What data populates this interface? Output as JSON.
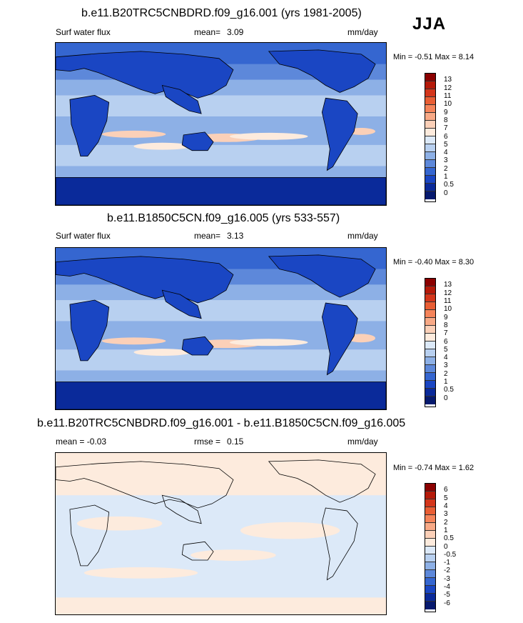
{
  "season": "JJA",
  "panels": [
    {
      "title": "b.e11.B20TRC5CNBDRD.f09_g16.001 (yrs 1981-2005)",
      "left_label": "Surf water flux",
      "mean_label": "mean=",
      "mean_value": "3.09",
      "units": "mm/day",
      "minmax": "Min =  -0.51 Max =   8.14",
      "levels": [
        "13",
        "12",
        "11",
        "10",
        "9",
        "8",
        "7",
        "6",
        "5",
        "4",
        "3",
        "2",
        "1",
        "0.5",
        "0"
      ]
    },
    {
      "title": "b.e11.B1850C5CN.f09_g16.005 (yrs 533-557)",
      "left_label": "Surf water flux",
      "mean_label": "mean=",
      "mean_value": "3.13",
      "units": "mm/day",
      "minmax": "Min =  -0.40 Max =   8.30",
      "levels": [
        "13",
        "12",
        "11",
        "10",
        "9",
        "8",
        "7",
        "6",
        "5",
        "4",
        "3",
        "2",
        "1",
        "0.5",
        "0"
      ]
    },
    {
      "title": "b.e11.B20TRC5CNBDRD.f09_g16.001 - b.e11.B1850C5CN.f09_g16.005",
      "left_label": "mean =  -0.03",
      "mean_label": "rmse =",
      "mean_value": "0.15",
      "units": "mm/day",
      "minmax": "Min =  -0.74 Max =   1.62",
      "levels": [
        "6",
        "5",
        "4",
        "3",
        "2",
        "1",
        "0.5",
        "0",
        "-0.5",
        "-1",
        "-2",
        "-3",
        "-4",
        "-5",
        "-6"
      ]
    }
  ],
  "colors": {
    "abs_scale": [
      "#8b0000",
      "#b51a0a",
      "#d4361b",
      "#e95e34",
      "#f5845a",
      "#f8a986",
      "#fbd0b8",
      "#fdebdd",
      "#dce9f8",
      "#b8d0f0",
      "#8db0e6",
      "#5d88da",
      "#3566d0",
      "#1a46c3",
      "#0a2a9a",
      "#061a6e"
    ],
    "diff_scale": [
      "#8b0000",
      "#b51a0a",
      "#d4361b",
      "#e95e34",
      "#f5845a",
      "#f8a986",
      "#fbd0b8",
      "#fdebdd",
      "#dce9f8",
      "#b8d0f0",
      "#8db0e6",
      "#5d88da",
      "#3566d0",
      "#1a46c3",
      "#0a2a9a",
      "#061a6e"
    ]
  }
}
